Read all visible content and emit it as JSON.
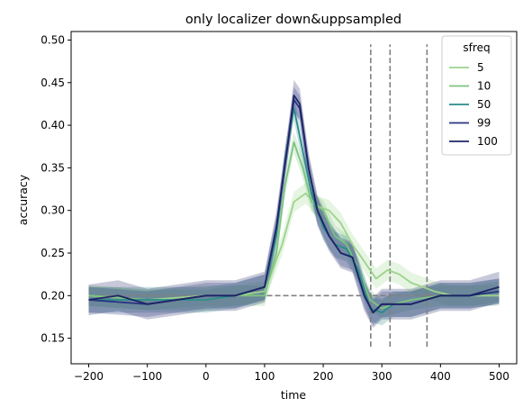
{
  "chart_data": {
    "type": "line",
    "title": "only localizer down&uppsampled",
    "xlabel": "time",
    "ylabel": "accuracy",
    "xlim": [
      -230,
      530
    ],
    "ylim": [
      0.12,
      0.51
    ],
    "xticks": [
      -200,
      -100,
      0,
      100,
      200,
      300,
      400,
      500
    ],
    "xtick_labels": [
      "−200",
      "−100",
      "0",
      "100",
      "200",
      "300",
      "400",
      "500"
    ],
    "yticks": [
      0.15,
      0.2,
      0.25,
      0.3,
      0.35,
      0.4,
      0.45,
      0.5
    ],
    "ytick_labels": [
      "0.15",
      "0.20",
      "0.25",
      "0.30",
      "0.35",
      "0.40",
      "0.45",
      "0.50"
    ],
    "grid": false,
    "legend": {
      "title": "sfreq",
      "placement": "top-right"
    },
    "reference_lines": {
      "horizontal_chance": {
        "y": 0.2,
        "x_range": [
          -200,
          500
        ]
      },
      "vertical": [
        {
          "x": 281,
          "y_range": [
            0.14,
            0.495
          ]
        },
        {
          "x": 314,
          "y_range": [
            0.14,
            0.495
          ]
        },
        {
          "x": 377,
          "y_range": [
            0.14,
            0.495
          ]
        }
      ],
      "color": "#808080"
    },
    "series": [
      {
        "name": "5",
        "color": "#9cd38b",
        "ci_half_width": 0.012,
        "x": [
          -200,
          -100,
          0,
          50,
          100,
          130,
          150,
          170,
          190,
          210,
          230,
          250,
          270,
          290,
          310,
          330,
          350,
          370,
          390,
          420,
          460,
          500
        ],
        "values": [
          0.2,
          0.195,
          0.2,
          0.2,
          0.205,
          0.26,
          0.31,
          0.32,
          0.305,
          0.3,
          0.285,
          0.26,
          0.24,
          0.22,
          0.23,
          0.225,
          0.215,
          0.21,
          0.205,
          0.2,
          0.2,
          0.2
        ]
      },
      {
        "name": "10",
        "color": "#7cc47e",
        "ci_half_width": 0.012,
        "x": [
          -200,
          -100,
          0,
          50,
          100,
          120,
          135,
          150,
          165,
          180,
          200,
          220,
          240,
          260,
          280,
          300,
          320,
          350,
          400,
          450,
          500
        ],
        "values": [
          0.2,
          0.195,
          0.195,
          0.2,
          0.2,
          0.25,
          0.33,
          0.38,
          0.35,
          0.31,
          0.3,
          0.27,
          0.26,
          0.23,
          0.195,
          0.185,
          0.19,
          0.195,
          0.2,
          0.2,
          0.205
        ]
      },
      {
        "name": "50",
        "color": "#2a8a89",
        "ci_half_width": 0.015,
        "x": [
          -200,
          -100,
          0,
          50,
          100,
          120,
          135,
          150,
          165,
          180,
          200,
          220,
          240,
          260,
          280,
          300,
          320,
          350,
          400,
          450,
          500
        ],
        "values": [
          0.195,
          0.195,
          0.195,
          0.2,
          0.21,
          0.27,
          0.36,
          0.42,
          0.37,
          0.32,
          0.28,
          0.26,
          0.255,
          0.23,
          0.185,
          0.18,
          0.19,
          0.19,
          0.2,
          0.2,
          0.205
        ]
      },
      {
        "name": "99",
        "color": "#283582",
        "ci_half_width": 0.015,
        "x": [
          -200,
          -100,
          0,
          50,
          100,
          120,
          140,
          150,
          160,
          175,
          190,
          210,
          230,
          250,
          270,
          285,
          300,
          320,
          350,
          400,
          450,
          500
        ],
        "values": [
          0.195,
          0.19,
          0.2,
          0.2,
          0.21,
          0.28,
          0.38,
          0.43,
          0.42,
          0.35,
          0.3,
          0.27,
          0.25,
          0.245,
          0.2,
          0.18,
          0.19,
          0.19,
          0.19,
          0.2,
          0.2,
          0.205
        ]
      },
      {
        "name": "100",
        "color": "#1e2466",
        "ci_half_width": 0.018,
        "x": [
          -200,
          -150,
          -100,
          -50,
          0,
          50,
          100,
          120,
          140,
          150,
          160,
          175,
          190,
          210,
          230,
          250,
          270,
          285,
          300,
          320,
          350,
          400,
          450,
          500
        ],
        "values": [
          0.195,
          0.2,
          0.19,
          0.195,
          0.2,
          0.2,
          0.21,
          0.28,
          0.38,
          0.435,
          0.425,
          0.35,
          0.3,
          0.27,
          0.25,
          0.245,
          0.2,
          0.18,
          0.19,
          0.19,
          0.19,
          0.2,
          0.2,
          0.21
        ]
      }
    ]
  }
}
